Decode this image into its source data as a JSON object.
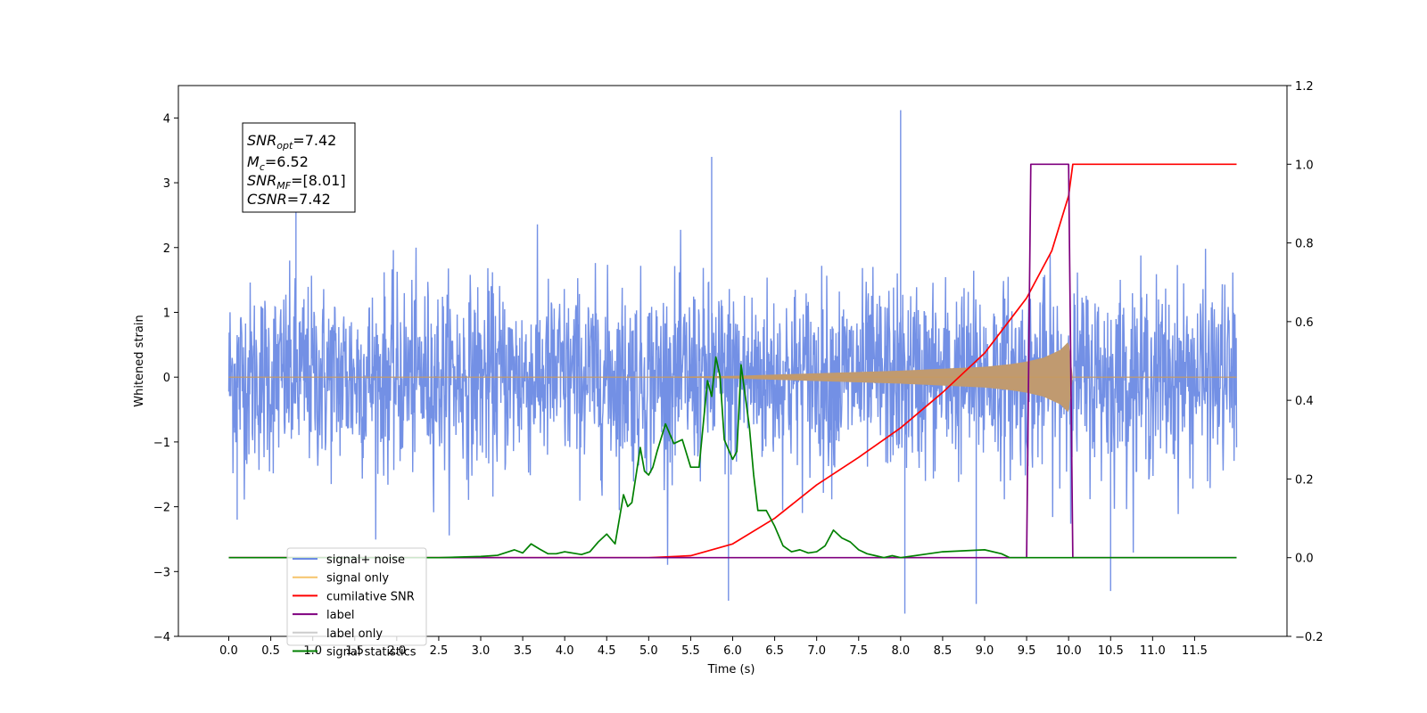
{
  "chart_data": {
    "type": "line",
    "xlabel": "Time (s)",
    "ylabel": "Whitened strain",
    "xlim": [
      -0.6,
      12.6
    ],
    "ylim_left": [
      -4.0,
      4.5
    ],
    "ylim_right": [
      -0.2,
      1.2
    ],
    "x_ticks": [
      "0.0",
      "0.5",
      "1.0",
      "1.5",
      "2.0",
      "2.5",
      "3.0",
      "3.5",
      "4.0",
      "4.5",
      "5.0",
      "5.5",
      "6.0",
      "6.5",
      "7.0",
      "7.5",
      "8.0",
      "8.5",
      "9.0",
      "9.5",
      "10.0",
      "10.5",
      "11.0",
      "11.5"
    ],
    "y_ticks_left": [
      "4",
      "3",
      "2",
      "1",
      "0",
      "−1",
      "−2",
      "−3",
      "−4"
    ],
    "y_ticks_right": [
      "1.2",
      "1.0",
      "0.8",
      "0.6",
      "0.4",
      "0.2",
      "0.0",
      "−0.2"
    ],
    "annotation": {
      "lines": [
        {
          "base": "SNR",
          "sub": "opt",
          "rest": "=7.42"
        },
        {
          "base": "M",
          "sub": "c",
          "rest": "=6.52"
        },
        {
          "base": "SNR",
          "sub": "MF",
          "rest": "=[8.01]"
        },
        {
          "base": "CSNR",
          "sub": "",
          "rest": "=7.42"
        }
      ]
    },
    "legend": {
      "placement": "lower-left",
      "entries": [
        {
          "label": "signal+ noise",
          "color": "#6c8ae4"
        },
        {
          "label": "signal only",
          "color": "#f6c46a"
        },
        {
          "label": "cumilative SNR",
          "color": "#ff0000"
        },
        {
          "label": "label",
          "color": "#7f007f"
        },
        {
          "label": "label only",
          "color": "#cccccc"
        },
        {
          "label": "signal statistics",
          "color": "#008000"
        }
      ]
    },
    "series": [
      {
        "name": "signal+ noise",
        "axis": "left",
        "color": "#6c8ae4",
        "kind": "noise",
        "x_range": [
          0.0,
          12.0
        ],
        "typical_envelope": [
          -1.5,
          2.0
        ],
        "notable_peaks": [
          [
            0.1,
            -2.2
          ],
          [
            0.8,
            2.7
          ],
          [
            5.75,
            3.4
          ],
          [
            5.95,
            -3.45
          ],
          [
            8.0,
            4.12
          ],
          [
            8.05,
            -3.65
          ],
          [
            8.9,
            -3.5
          ],
          [
            10.5,
            -3.3
          ]
        ]
      },
      {
        "name": "signal only",
        "axis": "left",
        "color": "#c89a60",
        "kind": "chirp",
        "x": [
          0.0,
          5.0,
          6.0,
          7.0,
          8.0,
          8.5,
          9.0,
          9.3,
          9.5,
          9.7,
          9.9,
          10.0,
          10.05,
          12.0
        ],
        "amplitude": [
          0.0,
          0.0,
          0.02,
          0.06,
          0.1,
          0.13,
          0.16,
          0.2,
          0.24,
          0.3,
          0.42,
          0.55,
          0.0,
          0.0
        ]
      },
      {
        "name": "cumilative SNR",
        "axis": "right",
        "color": "#ff0000",
        "x": [
          0.0,
          5.0,
          5.5,
          6.0,
          6.5,
          7.0,
          7.5,
          8.0,
          8.5,
          9.0,
          9.5,
          9.8,
          10.0,
          10.05,
          12.0
        ],
        "values": [
          0.0,
          0.0,
          0.005,
          0.035,
          0.1,
          0.185,
          0.255,
          0.33,
          0.42,
          0.52,
          0.66,
          0.78,
          0.92,
          1.0,
          1.0
        ]
      },
      {
        "name": "label",
        "axis": "right",
        "color": "#7f007f",
        "x": [
          0.0,
          9.5,
          9.55,
          10.0,
          10.05,
          12.0
        ],
        "values": [
          0.0,
          0.0,
          1.0,
          1.0,
          0.0,
          0.0
        ]
      },
      {
        "name": "signal statistics",
        "axis": "right",
        "color": "#008000",
        "x": [
          0.0,
          2.5,
          3.0,
          3.2,
          3.4,
          3.5,
          3.6,
          3.7,
          3.8,
          3.9,
          4.0,
          4.2,
          4.3,
          4.4,
          4.5,
          4.6,
          4.7,
          4.75,
          4.8,
          4.9,
          4.95,
          5.0,
          5.05,
          5.1,
          5.2,
          5.3,
          5.4,
          5.5,
          5.55,
          5.6,
          5.7,
          5.75,
          5.8,
          5.85,
          5.9,
          6.0,
          6.05,
          6.1,
          6.2,
          6.25,
          6.3,
          6.4,
          6.5,
          6.6,
          6.7,
          6.8,
          6.9,
          7.0,
          7.1,
          7.2,
          7.3,
          7.4,
          7.5,
          7.6,
          7.7,
          7.8,
          7.9,
          8.0,
          8.5,
          9.0,
          9.2,
          9.3,
          9.4,
          9.5,
          10.0,
          12.0
        ],
        "values": [
          0.0,
          0.0,
          0.003,
          0.006,
          0.02,
          0.012,
          0.035,
          0.022,
          0.01,
          0.01,
          0.015,
          0.008,
          0.015,
          0.04,
          0.06,
          0.035,
          0.16,
          0.13,
          0.14,
          0.28,
          0.22,
          0.21,
          0.23,
          0.27,
          0.34,
          0.29,
          0.3,
          0.23,
          0.23,
          0.23,
          0.45,
          0.41,
          0.51,
          0.46,
          0.3,
          0.25,
          0.27,
          0.49,
          0.33,
          0.21,
          0.12,
          0.12,
          0.08,
          0.03,
          0.015,
          0.02,
          0.012,
          0.015,
          0.03,
          0.07,
          0.05,
          0.04,
          0.02,
          0.01,
          0.005,
          0.0,
          0.005,
          0.0,
          0.015,
          0.02,
          0.01,
          0.0,
          0.0,
          0.0,
          0.0,
          0.0
        ]
      }
    ]
  }
}
